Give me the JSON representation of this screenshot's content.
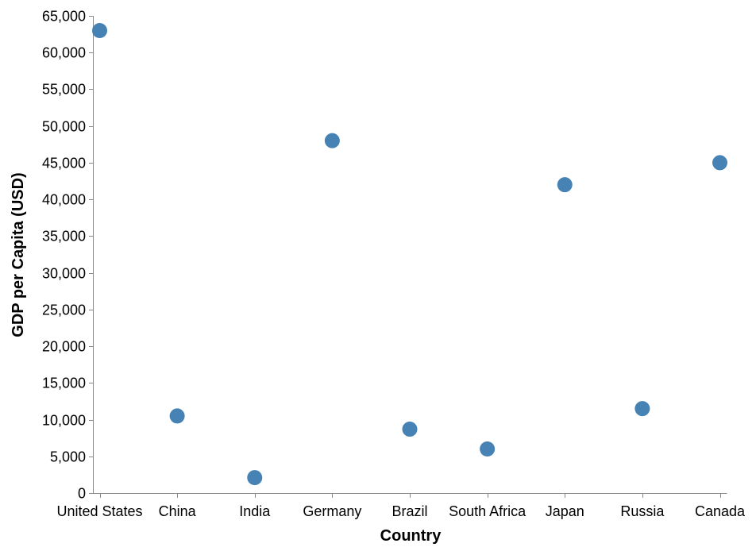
{
  "chart_data": {
    "type": "scatter",
    "title": "",
    "xlabel": "Country",
    "ylabel": "GDP per Capita (USD)",
    "categories": [
      "United States",
      "China",
      "India",
      "Germany",
      "Brazil",
      "South Africa",
      "Japan",
      "Russia",
      "Canada"
    ],
    "values": [
      63000,
      10500,
      2100,
      48000,
      8700,
      6000,
      42000,
      11500,
      45000
    ],
    "ylim": [
      0,
      65000
    ],
    "y_ticks": [
      0,
      5000,
      10000,
      15000,
      20000,
      25000,
      30000,
      35000,
      40000,
      45000,
      50000,
      55000,
      60000,
      65000
    ],
    "y_tick_labels": [
      "0",
      "5,000",
      "10,000",
      "15,000",
      "20,000",
      "25,000",
      "30,000",
      "35,000",
      "40,000",
      "45,000",
      "50,000",
      "55,000",
      "60,000",
      "65,000"
    ],
    "point_color": "#4682b4",
    "grid": false,
    "legend": "none"
  }
}
